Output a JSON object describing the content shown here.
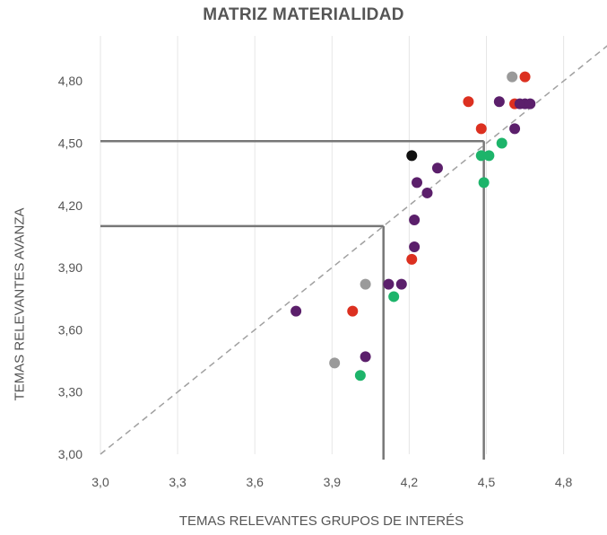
{
  "chart_data": {
    "type": "scatter",
    "title": "MATRIZ MATERIALIDAD",
    "xlabel": "TEMAS RELEVANTES GRUPOS DE INTERÉS",
    "ylabel": "TEMAS RELEVANTES AVANZA",
    "xlim": [
      3.0,
      5.0
    ],
    "ylim": [
      3.0,
      5.0
    ],
    "x_ticks": [
      "3,0",
      "3,3",
      "3,6",
      "3,9",
      "4,2",
      "4,5",
      "4,8"
    ],
    "x_tick_values": [
      3.0,
      3.3,
      3.6,
      3.9,
      4.2,
      4.5,
      4.8
    ],
    "y_ticks": [
      "3,00",
      "3,30",
      "3,60",
      "3,90",
      "4,20",
      "4,50",
      "4,80"
    ],
    "y_tick_values": [
      3.0,
      3.3,
      3.6,
      3.9,
      4.2,
      4.5,
      4.8
    ],
    "grid": "vertical",
    "diagonal": [
      [
        3.0,
        3.0
      ],
      [
        5.0,
        5.0
      ]
    ],
    "reference_lines": [
      {
        "x": 4.1,
        "y": 4.1
      },
      {
        "x": 4.49,
        "y": 4.51
      }
    ],
    "colors": {
      "purple": "#5b1f6b",
      "red": "#dc3020",
      "green": "#1db46a",
      "gray": "#9a9a9a",
      "black": "#111111"
    },
    "points": [
      {
        "x": 4.6,
        "y": 4.82,
        "color": "gray"
      },
      {
        "x": 4.65,
        "y": 4.82,
        "color": "red"
      },
      {
        "x": 4.43,
        "y": 4.7,
        "color": "red"
      },
      {
        "x": 4.55,
        "y": 4.7,
        "color": "purple"
      },
      {
        "x": 4.61,
        "y": 4.69,
        "color": "red"
      },
      {
        "x": 4.63,
        "y": 4.69,
        "color": "purple"
      },
      {
        "x": 4.65,
        "y": 4.69,
        "color": "purple"
      },
      {
        "x": 4.67,
        "y": 4.69,
        "color": "purple"
      },
      {
        "x": 4.48,
        "y": 4.57,
        "color": "red"
      },
      {
        "x": 4.61,
        "y": 4.57,
        "color": "purple"
      },
      {
        "x": 4.56,
        "y": 4.5,
        "color": "green"
      },
      {
        "x": 4.48,
        "y": 4.44,
        "color": "green"
      },
      {
        "x": 4.51,
        "y": 4.44,
        "color": "green"
      },
      {
        "x": 4.21,
        "y": 4.44,
        "color": "black"
      },
      {
        "x": 4.31,
        "y": 4.38,
        "color": "purple"
      },
      {
        "x": 4.49,
        "y": 4.31,
        "color": "green"
      },
      {
        "x": 4.23,
        "y": 4.31,
        "color": "purple"
      },
      {
        "x": 4.27,
        "y": 4.26,
        "color": "purple"
      },
      {
        "x": 4.22,
        "y": 4.13,
        "color": "purple"
      },
      {
        "x": 4.22,
        "y": 4.0,
        "color": "purple"
      },
      {
        "x": 4.21,
        "y": 3.94,
        "color": "red"
      },
      {
        "x": 4.03,
        "y": 3.82,
        "color": "gray"
      },
      {
        "x": 4.12,
        "y": 3.82,
        "color": "purple"
      },
      {
        "x": 4.17,
        "y": 3.82,
        "color": "purple"
      },
      {
        "x": 4.14,
        "y": 3.76,
        "color": "green"
      },
      {
        "x": 3.76,
        "y": 3.69,
        "color": "purple"
      },
      {
        "x": 3.98,
        "y": 3.69,
        "color": "red"
      },
      {
        "x": 4.03,
        "y": 3.47,
        "color": "purple"
      },
      {
        "x": 3.91,
        "y": 3.44,
        "color": "gray"
      },
      {
        "x": 4.01,
        "y": 3.38,
        "color": "green"
      }
    ]
  }
}
